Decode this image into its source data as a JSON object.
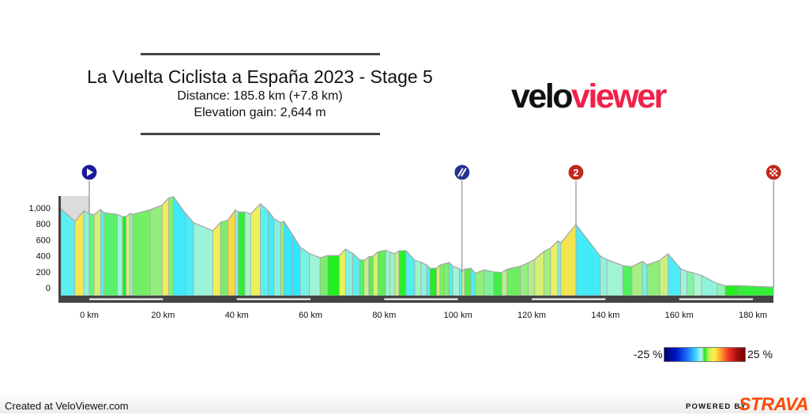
{
  "header": {
    "title": "La Vuelta Ciclista a España 2023 - Stage 5",
    "distance": "Distance: 185.8 km (+7.8 km)",
    "elevation_gain": "Elevation gain: 2,644 m"
  },
  "logo": {
    "part1": "velo",
    "part2": "viewer",
    "colors": {
      "velo": "#111111",
      "viewer": "#f0224a"
    }
  },
  "chart_data": {
    "type": "area",
    "xlabel": "",
    "ylabel": "",
    "x_unit": "km",
    "xlim": [
      -8,
      185.8
    ],
    "ylim": [
      -100,
      1150
    ],
    "grid": false,
    "x_ticks": [
      0,
      20,
      40,
      60,
      80,
      100,
      120,
      140,
      160,
      180
    ],
    "x_tick_labels": [
      "0 km",
      "20 km",
      "40 km",
      "60 km",
      "80 km",
      "100 km",
      "120 km",
      "140 km",
      "160 km",
      "180 km"
    ],
    "y_ticks": [
      0,
      200,
      400,
      600,
      800,
      1000
    ],
    "y_tick_labels": [
      "0",
      "200",
      "400",
      "600",
      "800",
      "1,000"
    ],
    "neutral_zone_km": [
      -8,
      0
    ],
    "series": [
      {
        "km": [
          -7.7,
          -3.9,
          -1.5,
          0,
          1.3,
          3.1,
          4.0,
          7.6,
          9,
          10,
          11,
          11.8,
          16.5,
          19.8,
          21.5,
          22.8,
          26.1,
          28.3,
          33.5,
          35.6,
          37.6,
          39.6,
          40.4,
          42.2,
          43.8,
          46.4,
          48.5,
          50.1,
          51.9,
          52.8,
          55.1,
          57.2,
          59.7,
          62.6,
          64.7,
          67.8,
          69.5,
          71.5,
          73.3,
          74.5,
          75.8,
          77,
          78.3,
          80.4,
          81.5,
          82.9,
          84,
          85.9,
          88.3,
          90,
          91.5,
          92.4,
          94.2,
          95.1,
          96.1,
          97.6,
          98.6,
          100.4,
          101.1,
          101.8,
          103.5,
          104.7,
          107.1,
          109.7,
          111.9,
          113.3,
          116.9,
          119,
          120.8,
          123.3,
          125.1,
          127.1,
          127.9,
          132,
          138.6,
          140.4,
          144.7,
          147.2,
          150,
          151.3,
          154.7,
          157,
          160.4,
          162.1,
          163.9,
          166.1,
          170.3,
          172.5,
          176.1,
          185.6
        ],
        "elevation_m": [
          990,
          830,
          963,
          924,
          914,
          980,
          940,
          918,
          891,
          891,
          930,
          920,
          977,
          1036,
          1122,
          1141,
          930,
          815,
          713,
          819,
          845,
          974,
          950,
          947,
          924,
          1052,
          963,
          865,
          815,
          832,
          666,
          508,
          429,
          376,
          403,
          403,
          485,
          429,
          350,
          343,
          386,
          396,
          449,
          468,
          445,
          426,
          462,
          465,
          343,
          320,
          284,
          244,
          244,
          284,
          297,
          317,
          270,
          238,
          205,
          231,
          244,
          181,
          224,
          198,
          191,
          231,
          270,
          310,
          356,
          455,
          495,
          587,
          561,
          792,
          396,
          353,
          277,
          264,
          330,
          287,
          343,
          423,
          238,
          205,
          185,
          152,
          53,
          26,
          26,
          7
        ]
      }
    ],
    "markers": [
      {
        "type": "start",
        "km": 0,
        "icon": "play-icon",
        "color": "#1a1a9c"
      },
      {
        "type": "feed-zone",
        "km": 101.1,
        "icon": "feed-zone-icon",
        "color": "#27338f"
      },
      {
        "type": "climb",
        "category": "2",
        "km": 132,
        "icon": "climb-category-icon",
        "color": "#c0281c"
      },
      {
        "type": "finish",
        "km": 185.6,
        "icon": "checkered-flag-icon",
        "color": "#c0281c"
      }
    ],
    "gradient_legend": {
      "min_label": "-25 %",
      "max_label": "25 %",
      "min": -25,
      "max": 25
    }
  },
  "footer": {
    "created": "Created at VeloViewer.com",
    "powered_by": "POWERED BY",
    "strava": "STRAVA",
    "strava_color": "#fc4c02"
  }
}
